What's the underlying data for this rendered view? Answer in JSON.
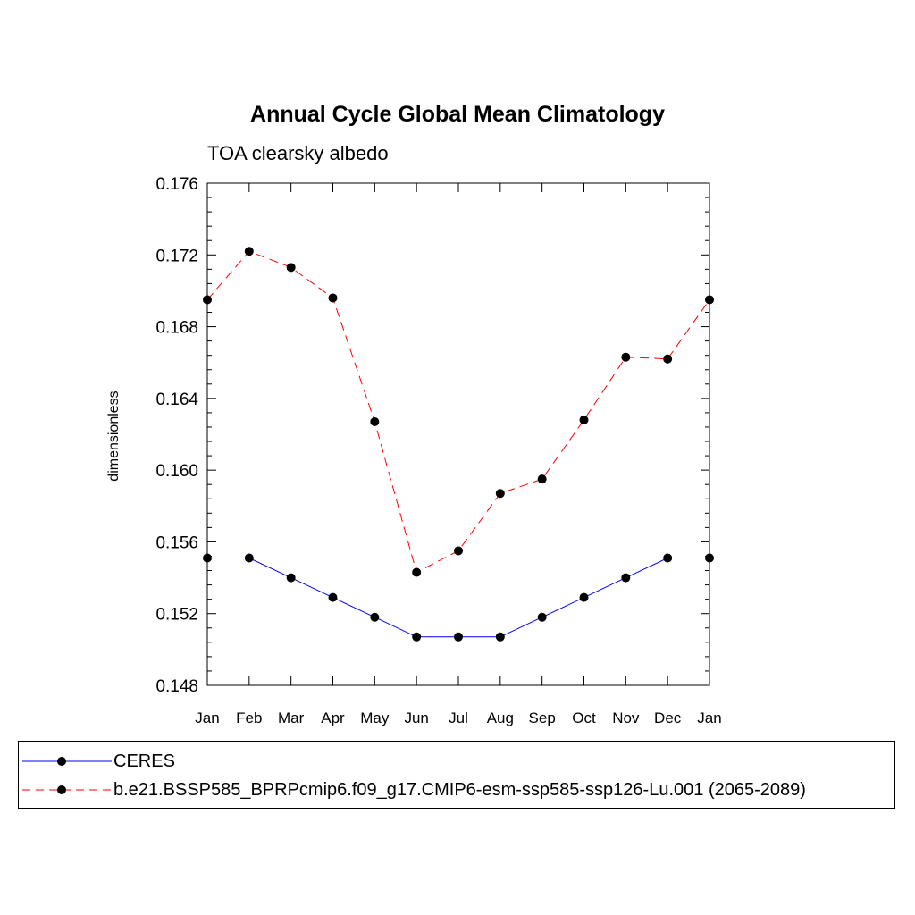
{
  "chart_data": {
    "type": "line",
    "title": "Annual Cycle Global Mean Climatology",
    "subtitle": "TOA clearsky albedo",
    "ylabel": "dimensionless",
    "xlabel": "",
    "categories": [
      "Jan",
      "Feb",
      "Mar",
      "Apr",
      "May",
      "Jun",
      "Jul",
      "Aug",
      "Sep",
      "Oct",
      "Nov",
      "Dec",
      "Jan"
    ],
    "ylim": [
      0.148,
      0.176
    ],
    "yticks": [
      "0.148",
      "0.152",
      "0.156",
      "0.160",
      "0.164",
      "0.168",
      "0.172",
      "0.176"
    ],
    "grid": false,
    "legend_position": "bottom",
    "series": [
      {
        "name": "CERES",
        "color": "#0000ff",
        "line_style": "solid",
        "marker": "circle",
        "values": [
          0.1551,
          0.1551,
          0.154,
          0.1529,
          0.1518,
          0.1507,
          0.1507,
          0.1507,
          0.1518,
          0.1529,
          0.154,
          0.1551,
          0.1551
        ]
      },
      {
        "name": "b.e21.BSSP585_BPRPcmip6.f09_g17.CMIP6-esm-ssp585-ssp126-Lu.001 (2065-2089)",
        "color": "#ff0000",
        "line_style": "dashed",
        "marker": "circle",
        "values": [
          0.1695,
          0.1722,
          0.1713,
          0.1696,
          0.1627,
          0.1543,
          0.1555,
          0.1587,
          0.1595,
          0.1628,
          0.1663,
          0.1662,
          0.1695
        ]
      }
    ]
  }
}
